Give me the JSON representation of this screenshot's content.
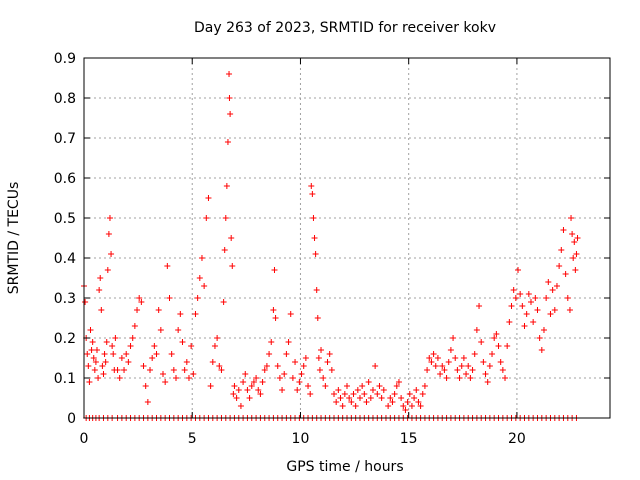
{
  "chart_data": {
    "type": "scatter",
    "title": "Day 263 of 2023, SRMTID for receiver kokv",
    "xlabel": "GPS time / hours",
    "ylabel": "SRMTID / TECUs",
    "xlim": [
      0,
      24.3
    ],
    "ylim": [
      0,
      0.9
    ],
    "grid": true,
    "marker": "+",
    "color": "#ff0000",
    "x_ticks": [
      {
        "value": 0,
        "label": "0"
      },
      {
        "value": 5,
        "label": "5"
      },
      {
        "value": 10,
        "label": "10"
      },
      {
        "value": 15,
        "label": "15"
      },
      {
        "value": 20,
        "label": "20"
      }
    ],
    "y_ticks": [
      {
        "value": 0,
        "label": "0"
      },
      {
        "value": 0.1,
        "label": "0.1"
      },
      {
        "value": 0.2,
        "label": "0.2"
      },
      {
        "value": 0.3,
        "label": "0.3"
      },
      {
        "value": 0.4,
        "label": "0.4"
      },
      {
        "value": 0.5,
        "label": "0.5"
      },
      {
        "value": 0.6,
        "label": "0.6"
      },
      {
        "value": 0.7,
        "label": "0.7"
      },
      {
        "value": 0.8,
        "label": "0.8"
      },
      {
        "value": 0.9,
        "label": "0.9"
      }
    ],
    "series": [
      {
        "name": "SRMTID",
        "points": [
          [
            0.0,
            0.33
          ],
          [
            0.05,
            0.29
          ],
          [
            0.1,
            0.2
          ],
          [
            0.15,
            0.16
          ],
          [
            0.2,
            0.13
          ],
          [
            0.25,
            0.09
          ],
          [
            0.3,
            0.22
          ],
          [
            0.35,
            0.17
          ],
          [
            0.4,
            0.19
          ],
          [
            0.45,
            0.15
          ],
          [
            0.5,
            0.12
          ],
          [
            0.55,
            0.14
          ],
          [
            0.6,
            0.17
          ],
          [
            0.65,
            0.1
          ],
          [
            0.7,
            0.32
          ],
          [
            0.75,
            0.35
          ],
          [
            0.8,
            0.27
          ],
          [
            0.85,
            0.13
          ],
          [
            0.9,
            0.11
          ],
          [
            0.95,
            0.16
          ],
          [
            1.0,
            0.14
          ],
          [
            1.05,
            0.19
          ],
          [
            1.1,
            0.37
          ],
          [
            1.15,
            0.46
          ],
          [
            1.2,
            0.5
          ],
          [
            1.25,
            0.41
          ],
          [
            1.3,
            0.18
          ],
          [
            1.35,
            0.16
          ],
          [
            1.4,
            0.12
          ],
          [
            1.45,
            0.2
          ],
          [
            1.55,
            0.12
          ],
          [
            1.65,
            0.1
          ],
          [
            1.75,
            0.15
          ],
          [
            1.85,
            0.12
          ],
          [
            1.95,
            0.16
          ],
          [
            2.05,
            0.14
          ],
          [
            2.15,
            0.18
          ],
          [
            2.25,
            0.2
          ],
          [
            2.35,
            0.23
          ],
          [
            2.45,
            0.27
          ],
          [
            2.55,
            0.3
          ],
          [
            2.65,
            0.29
          ],
          [
            2.75,
            0.13
          ],
          [
            2.85,
            0.08
          ],
          [
            2.95,
            0.04
          ],
          [
            3.05,
            0.12
          ],
          [
            3.15,
            0.15
          ],
          [
            3.25,
            0.18
          ],
          [
            3.35,
            0.16
          ],
          [
            3.45,
            0.27
          ],
          [
            3.55,
            0.22
          ],
          [
            3.65,
            0.11
          ],
          [
            3.75,
            0.09
          ],
          [
            3.85,
            0.38
          ],
          [
            3.95,
            0.3
          ],
          [
            4.05,
            0.16
          ],
          [
            4.15,
            0.12
          ],
          [
            4.25,
            0.1
          ],
          [
            4.35,
            0.22
          ],
          [
            4.45,
            0.26
          ],
          [
            4.55,
            0.19
          ],
          [
            4.65,
            0.12
          ],
          [
            4.75,
            0.14
          ],
          [
            4.85,
            0.1
          ],
          [
            4.95,
            0.18
          ],
          [
            5.05,
            0.11
          ],
          [
            5.15,
            0.26
          ],
          [
            5.25,
            0.3
          ],
          [
            5.35,
            0.35
          ],
          [
            5.45,
            0.4
          ],
          [
            5.55,
            0.33
          ],
          [
            5.65,
            0.5
          ],
          [
            5.75,
            0.55
          ],
          [
            5.85,
            0.08
          ],
          [
            5.95,
            0.14
          ],
          [
            6.05,
            0.18
          ],
          [
            6.15,
            0.2
          ],
          [
            6.25,
            0.13
          ],
          [
            6.35,
            0.12
          ],
          [
            6.45,
            0.29
          ],
          [
            6.5,
            0.42
          ],
          [
            6.55,
            0.5
          ],
          [
            6.6,
            0.58
          ],
          [
            6.65,
            0.69
          ],
          [
            6.7,
            0.86
          ],
          [
            6.72,
            0.8
          ],
          [
            6.75,
            0.76
          ],
          [
            6.8,
            0.45
          ],
          [
            6.85,
            0.38
          ],
          [
            6.9,
            0.06
          ],
          [
            6.95,
            0.08
          ],
          [
            7.05,
            0.05
          ],
          [
            7.15,
            0.07
          ],
          [
            7.25,
            0.03
          ],
          [
            7.35,
            0.09
          ],
          [
            7.45,
            0.11
          ],
          [
            7.55,
            0.07
          ],
          [
            7.65,
            0.05
          ],
          [
            7.75,
            0.08
          ],
          [
            7.85,
            0.09
          ],
          [
            7.95,
            0.1
          ],
          [
            8.05,
            0.07
          ],
          [
            8.15,
            0.06
          ],
          [
            8.25,
            0.09
          ],
          [
            8.35,
            0.12
          ],
          [
            8.45,
            0.13
          ],
          [
            8.55,
            0.16
          ],
          [
            8.65,
            0.19
          ],
          [
            8.75,
            0.27
          ],
          [
            8.8,
            0.37
          ],
          [
            8.85,
            0.25
          ],
          [
            8.95,
            0.13
          ],
          [
            9.05,
            0.1
          ],
          [
            9.15,
            0.07
          ],
          [
            9.25,
            0.11
          ],
          [
            9.35,
            0.16
          ],
          [
            9.45,
            0.19
          ],
          [
            9.55,
            0.26
          ],
          [
            9.65,
            0.1
          ],
          [
            9.75,
            0.14
          ],
          [
            9.85,
            0.07
          ],
          [
            9.95,
            0.09
          ],
          [
            10.05,
            0.11
          ],
          [
            10.15,
            0.13
          ],
          [
            10.25,
            0.15
          ],
          [
            10.35,
            0.08
          ],
          [
            10.45,
            0.06
          ],
          [
            10.5,
            0.58
          ],
          [
            10.55,
            0.56
          ],
          [
            10.6,
            0.5
          ],
          [
            10.65,
            0.45
          ],
          [
            10.7,
            0.41
          ],
          [
            10.75,
            0.32
          ],
          [
            10.8,
            0.25
          ],
          [
            10.85,
            0.15
          ],
          [
            10.9,
            0.12
          ],
          [
            10.95,
            0.17
          ],
          [
            11.05,
            0.1
          ],
          [
            11.15,
            0.08
          ],
          [
            11.25,
            0.14
          ],
          [
            11.35,
            0.16
          ],
          [
            11.45,
            0.12
          ],
          [
            11.55,
            0.06
          ],
          [
            11.65,
            0.04
          ],
          [
            11.75,
            0.07
          ],
          [
            11.85,
            0.05
          ],
          [
            11.95,
            0.03
          ],
          [
            12.05,
            0.06
          ],
          [
            12.15,
            0.08
          ],
          [
            12.25,
            0.05
          ],
          [
            12.35,
            0.04
          ],
          [
            12.45,
            0.06
          ],
          [
            12.55,
            0.03
          ],
          [
            12.65,
            0.07
          ],
          [
            12.75,
            0.05
          ],
          [
            12.85,
            0.08
          ],
          [
            12.95,
            0.06
          ],
          [
            13.05,
            0.04
          ],
          [
            13.15,
            0.09
          ],
          [
            13.25,
            0.05
          ],
          [
            13.35,
            0.07
          ],
          [
            13.45,
            0.13
          ],
          [
            13.55,
            0.06
          ],
          [
            13.65,
            0.08
          ],
          [
            13.75,
            0.05
          ],
          [
            13.85,
            0.07
          ],
          [
            14.05,
            0.03
          ],
          [
            14.15,
            0.05
          ],
          [
            14.25,
            0.04
          ],
          [
            14.35,
            0.06
          ],
          [
            14.45,
            0.08
          ],
          [
            14.55,
            0.09
          ],
          [
            14.65,
            0.05
          ],
          [
            14.75,
            0.03
          ],
          [
            14.85,
            0.02
          ],
          [
            14.95,
            0.04
          ],
          [
            15.05,
            0.06
          ],
          [
            15.15,
            0.03
          ],
          [
            15.25,
            0.05
          ],
          [
            15.35,
            0.07
          ],
          [
            15.45,
            0.04
          ],
          [
            15.55,
            0.03
          ],
          [
            15.65,
            0.06
          ],
          [
            15.75,
            0.08
          ],
          [
            15.85,
            0.12
          ],
          [
            15.95,
            0.15
          ],
          [
            16.05,
            0.14
          ],
          [
            16.15,
            0.16
          ],
          [
            16.25,
            0.13
          ],
          [
            16.35,
            0.15
          ],
          [
            16.45,
            0.11
          ],
          [
            16.55,
            0.13
          ],
          [
            16.65,
            0.12
          ],
          [
            16.75,
            0.1
          ],
          [
            16.85,
            0.14
          ],
          [
            16.95,
            0.17
          ],
          [
            17.05,
            0.2
          ],
          [
            17.15,
            0.15
          ],
          [
            17.25,
            0.12
          ],
          [
            17.35,
            0.1
          ],
          [
            17.45,
            0.13
          ],
          [
            17.55,
            0.15
          ],
          [
            17.65,
            0.11
          ],
          [
            17.75,
            0.13
          ],
          [
            17.85,
            0.1
          ],
          [
            17.95,
            0.12
          ],
          [
            18.05,
            0.16
          ],
          [
            18.15,
            0.22
          ],
          [
            18.25,
            0.28
          ],
          [
            18.35,
            0.19
          ],
          [
            18.45,
            0.14
          ],
          [
            18.55,
            0.11
          ],
          [
            18.65,
            0.09
          ],
          [
            18.75,
            0.13
          ],
          [
            18.85,
            0.16
          ],
          [
            18.95,
            0.2
          ],
          [
            19.05,
            0.21
          ],
          [
            19.15,
            0.18
          ],
          [
            19.25,
            0.14
          ],
          [
            19.35,
            0.12
          ],
          [
            19.45,
            0.1
          ],
          [
            19.55,
            0.18
          ],
          [
            19.65,
            0.24
          ],
          [
            19.75,
            0.28
          ],
          [
            19.85,
            0.32
          ],
          [
            19.95,
            0.3
          ],
          [
            20.05,
            0.37
          ],
          [
            20.15,
            0.31
          ],
          [
            20.25,
            0.28
          ],
          [
            20.35,
            0.23
          ],
          [
            20.45,
            0.26
          ],
          [
            20.55,
            0.31
          ],
          [
            20.65,
            0.29
          ],
          [
            20.75,
            0.24
          ],
          [
            20.85,
            0.3
          ],
          [
            20.95,
            0.27
          ],
          [
            21.05,
            0.2
          ],
          [
            21.15,
            0.17
          ],
          [
            21.25,
            0.22
          ],
          [
            21.35,
            0.3
          ],
          [
            21.45,
            0.34
          ],
          [
            21.55,
            0.26
          ],
          [
            21.65,
            0.32
          ],
          [
            21.75,
            0.27
          ],
          [
            21.85,
            0.33
          ],
          [
            21.95,
            0.38
          ],
          [
            22.05,
            0.42
          ],
          [
            22.15,
            0.47
          ],
          [
            22.25,
            0.36
          ],
          [
            22.35,
            0.3
          ],
          [
            22.45,
            0.27
          ],
          [
            22.5,
            0.5
          ],
          [
            22.55,
            0.46
          ],
          [
            22.6,
            0.4
          ],
          [
            22.65,
            0.44
          ],
          [
            22.7,
            0.37
          ],
          [
            22.75,
            0.41
          ],
          [
            22.8,
            0.45
          ]
        ],
        "zero_points_x": [
          0.1,
          0.25,
          0.4,
          0.55,
          0.7,
          0.9,
          1.1,
          1.3,
          1.55,
          1.75,
          1.95,
          2.15,
          2.35,
          2.55,
          2.75,
          2.95,
          3.15,
          3.35,
          3.55,
          3.75,
          3.95,
          4.15,
          4.35,
          4.55,
          4.75,
          4.95,
          5.15,
          5.35,
          5.55,
          5.75,
          5.95,
          6.15,
          6.35,
          6.55,
          6.75,
          6.95,
          7.15,
          7.35,
          7.55,
          7.75,
          7.95,
          8.15,
          8.35,
          8.55,
          8.75,
          8.95,
          9.15,
          9.35,
          9.55,
          9.75,
          9.95,
          10.15,
          10.35,
          10.55,
          10.75,
          10.95,
          11.15,
          11.35,
          11.55,
          11.75,
          11.95,
          12.15,
          12.35,
          12.55,
          12.75,
          12.95,
          13.15,
          13.35,
          13.55,
          13.75,
          13.95,
          14.15,
          14.35,
          14.55,
          14.75,
          14.95,
          15.15,
          15.35,
          15.55,
          15.75,
          15.95,
          16.15,
          16.35,
          16.55,
          16.75,
          16.95,
          17.15,
          17.35,
          17.55,
          17.75,
          17.95,
          18.15,
          18.35,
          18.55,
          18.75,
          18.95,
          19.15,
          19.35,
          19.55,
          19.75,
          19.95,
          20.15,
          20.35,
          20.55,
          20.75,
          20.95,
          21.15,
          21.35,
          21.55,
          21.75,
          21.95,
          22.15,
          22.35,
          22.55,
          22.75
        ]
      }
    ]
  }
}
